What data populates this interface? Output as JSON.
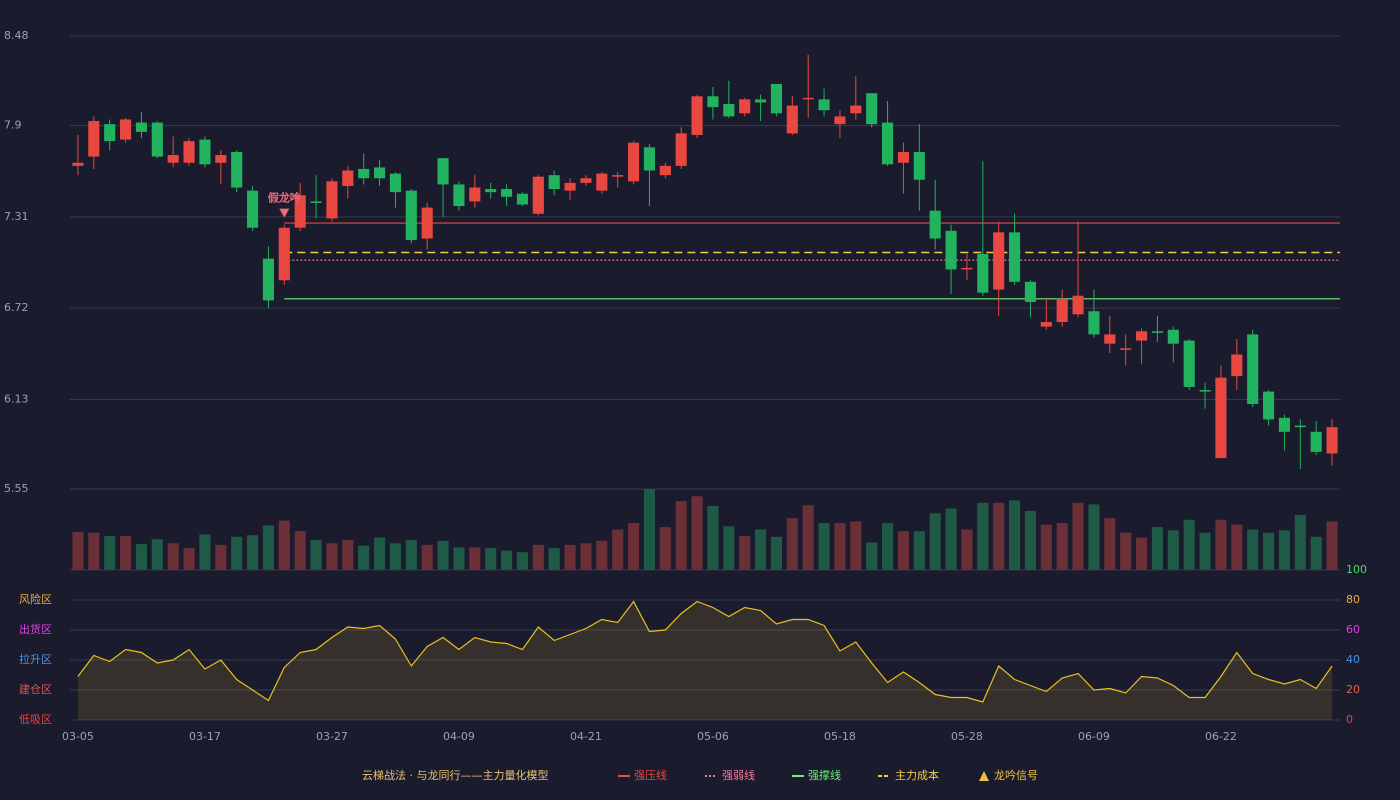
{
  "chart_data": {
    "type": "candlestick",
    "categories": [
      "03-05",
      null,
      null,
      null,
      null,
      null,
      null,
      null,
      "03-17",
      null,
      null,
      null,
      null,
      null,
      null,
      null,
      "03-27",
      null,
      null,
      null,
      null,
      null,
      null,
      null,
      "04-09",
      null,
      null,
      null,
      null,
      null,
      null,
      null,
      "04-21",
      null,
      null,
      null,
      null,
      null,
      null,
      null,
      "05-06",
      null,
      null,
      null,
      null,
      null,
      null,
      null,
      "05-18",
      null,
      null,
      null,
      null,
      null,
      null,
      null,
      "05-28",
      null,
      null,
      null,
      null,
      null,
      null,
      null,
      "06-09",
      null,
      null,
      null,
      null,
      null,
      null,
      null,
      "06-22",
      null,
      null,
      null,
      null,
      null,
      null,
      null
    ],
    "open": [
      7.64,
      7.7,
      7.91,
      7.81,
      7.92,
      7.92,
      7.66,
      7.66,
      7.81,
      7.66,
      7.73,
      7.48,
      7.04,
      6.9,
      7.24,
      7.41,
      7.3,
      7.51,
      7.62,
      7.63,
      7.59,
      7.48,
      7.17,
      7.69,
      7.52,
      7.41,
      7.49,
      7.49,
      7.46,
      7.33,
      7.58,
      7.48,
      7.53,
      7.48,
      7.57,
      7.54,
      7.76,
      7.58,
      7.64,
      7.84,
      8.09,
      8.04,
      7.98,
      8.07,
      8.17,
      7.85,
      8.07,
      8.07,
      7.91,
      7.98,
      8.11,
      7.92,
      7.66,
      7.73,
      7.35,
      7.22,
      6.97,
      7.07,
      6.84,
      7.21,
      6.89,
      6.6,
      6.63,
      6.68,
      6.7,
      6.49,
      6.45,
      6.51,
      6.57,
      6.58,
      6.51,
      6.19,
      5.75,
      6.28,
      6.55,
      6.18,
      6.01,
      5.96,
      5.92,
      5.78
    ],
    "high": [
      7.84,
      7.96,
      7.94,
      7.95,
      7.99,
      7.93,
      7.83,
      7.82,
      7.83,
      7.74,
      7.74,
      7.51,
      7.12,
      7.26,
      7.53,
      7.58,
      7.56,
      7.64,
      7.72,
      7.68,
      7.6,
      7.49,
      7.4,
      7.69,
      7.54,
      7.58,
      7.53,
      7.52,
      7.47,
      7.58,
      7.61,
      7.56,
      7.58,
      7.6,
      7.6,
      7.8,
      7.78,
      7.66,
      7.89,
      8.1,
      8.15,
      8.19,
      8.08,
      8.1,
      8.17,
      8.09,
      8.36,
      8.14,
      8.0,
      8.22,
      8.11,
      8.06,
      7.79,
      7.91,
      7.55,
      7.26,
      7.07,
      7.67,
      7.28,
      7.33,
      6.9,
      6.79,
      6.84,
      7.28,
      6.84,
      6.67,
      6.55,
      6.59,
      6.67,
      6.6,
      6.52,
      6.24,
      6.35,
      6.52,
      6.58,
      6.19,
      6.03,
      6.0,
      5.99,
      6.0
    ],
    "low": [
      7.58,
      7.62,
      7.74,
      7.79,
      7.82,
      7.69,
      7.63,
      7.64,
      7.63,
      7.52,
      7.47,
      7.22,
      6.72,
      6.87,
      7.22,
      7.3,
      7.28,
      7.43,
      7.52,
      7.51,
      7.37,
      7.14,
      7.1,
      7.31,
      7.35,
      7.37,
      7.43,
      7.38,
      7.38,
      7.32,
      7.45,
      7.42,
      7.51,
      7.46,
      7.5,
      7.52,
      7.38,
      7.56,
      7.62,
      7.82,
      7.94,
      7.95,
      7.96,
      7.93,
      7.96,
      7.84,
      7.95,
      7.96,
      7.82,
      7.94,
      7.89,
      7.64,
      7.46,
      7.35,
      7.1,
      6.81,
      6.9,
      6.8,
      6.67,
      6.87,
      6.66,
      6.58,
      6.6,
      6.66,
      6.53,
      6.43,
      6.35,
      6.36,
      6.5,
      6.37,
      6.19,
      6.07,
      5.75,
      6.19,
      6.08,
      5.96,
      5.8,
      5.68,
      5.77,
      5.7
    ],
    "close": [
      7.66,
      7.93,
      7.8,
      7.94,
      7.86,
      7.7,
      7.71,
      7.8,
      7.65,
      7.71,
      7.5,
      7.24,
      6.77,
      7.24,
      7.45,
      7.4,
      7.54,
      7.61,
      7.56,
      7.56,
      7.47,
      7.16,
      7.37,
      7.52,
      7.38,
      7.5,
      7.47,
      7.44,
      7.39,
      7.57,
      7.49,
      7.53,
      7.56,
      7.59,
      7.58,
      7.79,
      7.61,
      7.64,
      7.85,
      8.09,
      8.02,
      7.96,
      8.07,
      8.05,
      7.98,
      8.03,
      8.08,
      8.0,
      7.96,
      8.03,
      7.91,
      7.65,
      7.73,
      7.55,
      7.17,
      6.97,
      6.98,
      6.82,
      7.21,
      6.89,
      6.76,
      6.63,
      6.78,
      6.8,
      6.55,
      6.55,
      6.46,
      6.57,
      6.56,
      6.49,
      6.21,
      6.18,
      6.27,
      6.42,
      6.1,
      6.0,
      5.92,
      5.95,
      5.79,
      5.95
    ],
    "up_color": "#e8483f",
    "down_color": "#22b35e",
    "ylim": [
      5.55,
      8.48
    ],
    "yticks": [
      5.55,
      6.13,
      6.72,
      7.31,
      7.9,
      8.48
    ],
    "grid": true,
    "levels": [
      {
        "name": "强压线",
        "value": 7.27,
        "color": "#e8483f",
        "style": "solid"
      },
      {
        "name": "强弱线",
        "value": 7.03,
        "color": "#f07a9a",
        "style": "dotted"
      },
      {
        "name": "强撑线",
        "value": 6.78,
        "color": "#6af07a",
        "style": "solid"
      },
      {
        "name": "主力成本",
        "value": 7.08,
        "color": "#f0d040",
        "style": "dashed"
      }
    ],
    "signals": [
      {
        "index": 13,
        "label": "假龙吟",
        "color": "#f06a7a"
      }
    ],
    "signal_legend": "龙吟信号",
    "signal_legend_color": "#f0c040",
    "legend_title": "云梯战法 · 与龙同行——主力量化模型",
    "legend_title_color": "#e8c070",
    "volume": {
      "values": [
        47,
        46,
        42,
        42,
        32,
        38,
        33,
        27,
        44,
        31,
        41,
        43,
        55,
        61,
        48,
        37,
        33,
        37,
        30,
        40,
        33,
        37,
        31,
        36,
        28,
        28,
        27,
        24,
        22,
        31,
        27,
        31,
        33,
        36,
        50,
        58,
        100,
        53,
        85,
        91,
        79,
        54,
        42,
        50,
        41,
        64,
        80,
        58,
        58,
        60,
        34,
        58,
        48,
        48,
        70,
        76,
        50,
        83,
        83,
        86,
        73,
        56,
        58,
        83,
        81,
        64,
        46,
        40,
        53,
        49,
        62,
        46,
        62,
        56,
        50,
        46,
        49,
        68,
        41,
        60
      ],
      "ylim": [
        0,
        100
      ],
      "up_color": "#6b2f37",
      "down_color": "#1e5a45"
    },
    "indicator": {
      "values": [
        29,
        43,
        39,
        47,
        45,
        38,
        40,
        47,
        34,
        40,
        27,
        20,
        13,
        35,
        45,
        47,
        55,
        62,
        61,
        63,
        54,
        36,
        49,
        55,
        47,
        55,
        52,
        51,
        47,
        62,
        53,
        57,
        61,
        67,
        65,
        79,
        59,
        60,
        71,
        79,
        75,
        69,
        75,
        73,
        64,
        67,
        67,
        63,
        46,
        52,
        38,
        25,
        32,
        25,
        17,
        15,
        15,
        12,
        36,
        27,
        23,
        19,
        28,
        31,
        20,
        21,
        18,
        29,
        28,
        23,
        15,
        15,
        29,
        45,
        31,
        27,
        24,
        27,
        21,
        36
      ],
      "color": "#e8c020",
      "ylim": [
        0,
        100
      ],
      "yticks": [
        0,
        20,
        40,
        60,
        80,
        100
      ],
      "ytick_colors": [
        "#e84040",
        "#e86040",
        "#4a90e8",
        "#e040e0",
        "#e8b040",
        "#40e060"
      ],
      "zones": [
        {
          "label": "风险区",
          "value": 80,
          "color": "#e8b040"
        },
        {
          "label": "出货区",
          "value": 60,
          "color": "#e040e0"
        },
        {
          "label": "拉升区",
          "value": 40,
          "color": "#4a90e8"
        },
        {
          "label": "建仓区",
          "value": 20,
          "color": "#e85050"
        },
        {
          "label": "低吸区",
          "value": 0,
          "color": "#e84040"
        }
      ]
    }
  }
}
